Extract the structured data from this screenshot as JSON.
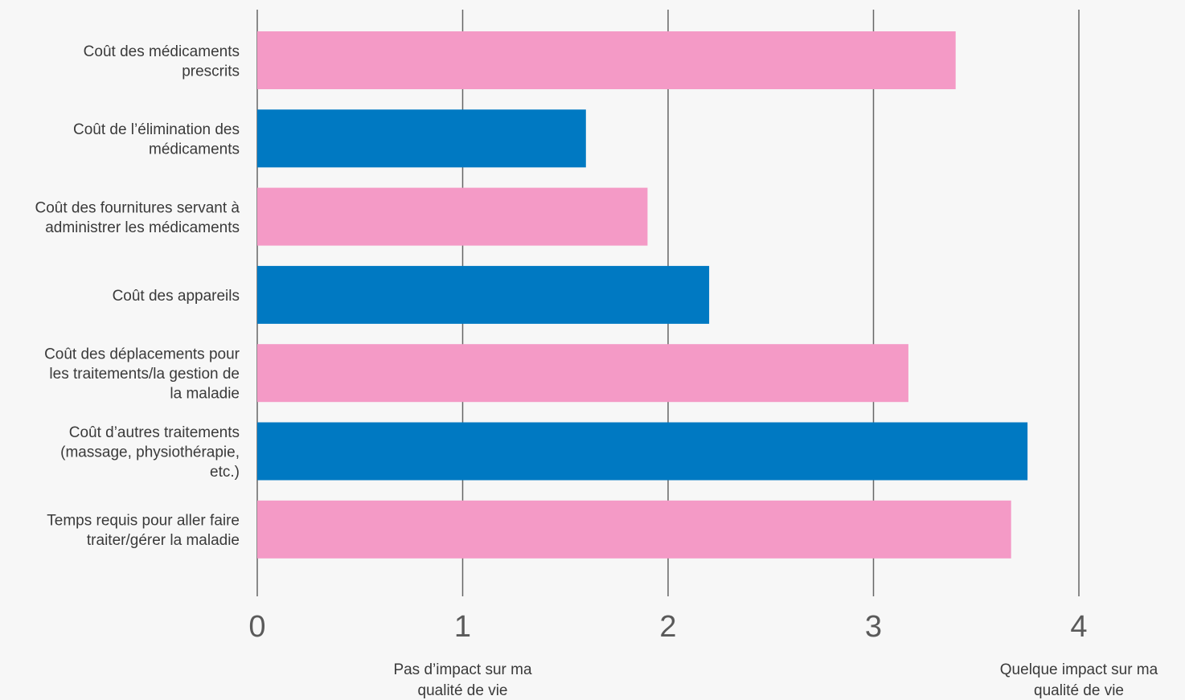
{
  "chart_data": {
    "type": "bar",
    "orientation": "horizontal",
    "title": "",
    "xlabel": "",
    "ylabel": "",
    "xlim": [
      0,
      4
    ],
    "grid": true,
    "categories": [
      "Coût des médicaments prescrits",
      "Coût de l’élimination des médicaments",
      "Coût des fournitures servant à administrer les médicaments",
      "Coût des appareils",
      "Coût des déplacements pour les traitements/la gestion de la maladie",
      "Coût d’autres traitements (massage, physiothérapie, etc.)",
      "Temps requis pour aller faire traiter/gérer la maladie"
    ],
    "values": [
      3.4,
      1.6,
      1.9,
      2.2,
      3.17,
      3.75,
      3.67
    ],
    "bar_colors": [
      "#f49ac6",
      "#0079c2",
      "#f49ac6",
      "#0079c2",
      "#f49ac6",
      "#0079c2",
      "#f49ac6"
    ],
    "ticks": [
      0,
      1,
      2,
      3,
      4
    ],
    "tick_labels": [
      "0",
      "1",
      "2",
      "3",
      "4"
    ],
    "annotations": [
      {
        "text": "Pas d’impact sur ma qualité de vie",
        "x": 1
      },
      {
        "text": "Quelque impact sur ma qualité de vie",
        "x": 4
      }
    ],
    "colors": {
      "pink": "#f49ac6",
      "blue": "#0079c2",
      "grid": "#666666",
      "background": "#f7f7f7"
    }
  }
}
